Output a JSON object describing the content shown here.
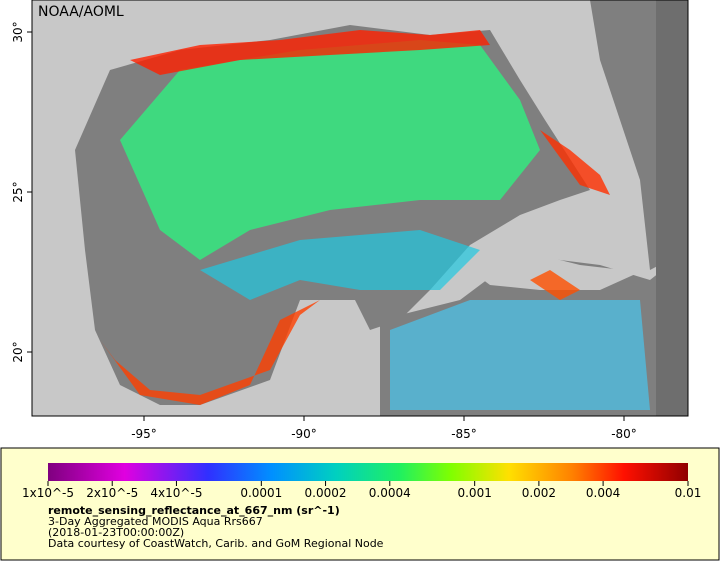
{
  "map": {
    "title": "NOAA/AOML",
    "xlim": [
      -98.5,
      -78
    ],
    "ylim": [
      18,
      31
    ],
    "xticks": [
      {
        "value": -95,
        "label": "-95°"
      },
      {
        "value": -90,
        "label": "-90°"
      },
      {
        "value": -85,
        "label": "-85°"
      },
      {
        "value": -80,
        "label": "-80°"
      }
    ],
    "yticks": [
      {
        "value": 20,
        "label": "20°"
      },
      {
        "value": 25,
        "label": "25°"
      },
      {
        "value": 30,
        "label": "30°"
      }
    ]
  },
  "legend": {
    "scale": "log",
    "lim": [
      1e-05,
      0.01
    ],
    "ticks": [
      {
        "value": 1e-05,
        "label": "1x10^-5"
      },
      {
        "value": 2e-05,
        "label": "2x10^-5"
      },
      {
        "value": 4e-05,
        "label": "4x10^-5"
      },
      {
        "value": 0.0001,
        "label": "0.0001"
      },
      {
        "value": 0.0002,
        "label": "0.0002"
      },
      {
        "value": 0.0004,
        "label": "0.0004"
      },
      {
        "value": 0.001,
        "label": "0.001"
      },
      {
        "value": 0.002,
        "label": "0.002"
      },
      {
        "value": 0.004,
        "label": "0.004"
      },
      {
        "value": 0.01,
        "label": "0.01"
      }
    ],
    "variable": "remote_sensing_reflectance_at_667_nm (sr^-1)",
    "lines": [
      "3-Day Aggregated MODIS Aqua Rrs667",
      "(2018-01-23T00:00:00Z)",
      "Data courtesy of CoastWatch, Carib. and GoM Regional Node"
    ]
  }
}
